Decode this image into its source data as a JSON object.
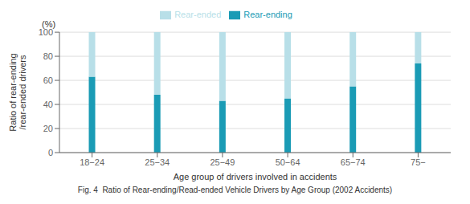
{
  "chart_data": {
    "type": "bar",
    "stacked": true,
    "categories": [
      "18−24",
      "25−34",
      "25−49",
      "50−64",
      "65−74",
      "75−"
    ],
    "series": [
      {
        "name": "Rear-ending",
        "color": "#1a9bb5",
        "values": [
          63,
          48,
          43,
          45,
          55,
          74
        ]
      },
      {
        "name": "Rear-ended",
        "color": "#b8dfe8",
        "values": [
          37,
          52,
          57,
          55,
          45,
          26
        ]
      }
    ],
    "ylim": [
      0,
      100
    ],
    "yticks": [
      0,
      20,
      40,
      60,
      80,
      100
    ],
    "xlabel": "Age group of drivers involved in accidents",
    "ylabel": "Ratio of rear-ending\n/rear-ended drivers",
    "annotations": [
      "(%)"
    ],
    "caption": "Fig. 4  Ratio of Rear-ending/Read-ended Vehicle Drivers by Age Group (2002 Accidents)",
    "grid": true,
    "legend": "top"
  }
}
